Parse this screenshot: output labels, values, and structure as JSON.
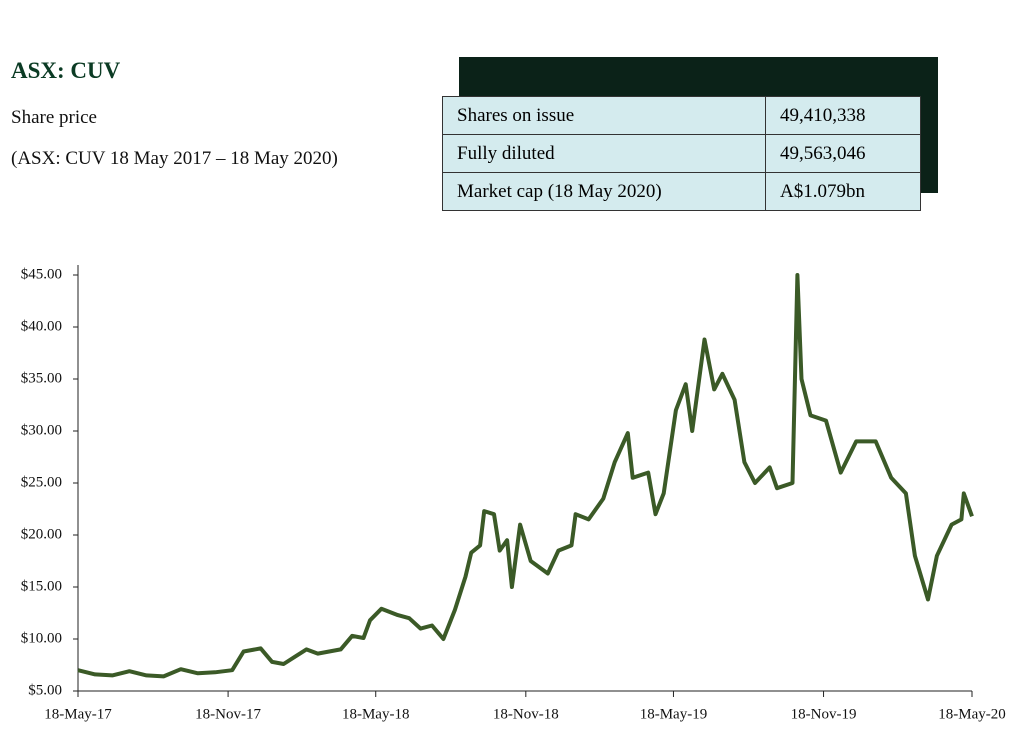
{
  "header": {
    "title": "ASX: CUV",
    "subtitle": "Share price",
    "note": "(ASX: CUV 18 May 2017 – 18 May 2020)"
  },
  "table": {
    "rows": [
      [
        "Shares on issue",
        "49,410,338"
      ],
      [
        "Fully diluted",
        "49,563,046"
      ],
      [
        "Market cap (18 May 2020)",
        "A$1.079bn"
      ]
    ]
  },
  "chart_data": {
    "type": "line",
    "color": "#3b5a27",
    "x": [
      "2017-05-18",
      "2017-06-08",
      "2017-06-29",
      "2017-07-20",
      "2017-08-10",
      "2017-08-31",
      "2017-09-21",
      "2017-10-12",
      "2017-11-02",
      "2017-11-23",
      "2017-12-07",
      "2017-12-28",
      "2018-01-11",
      "2018-01-25",
      "2018-02-08",
      "2018-02-22",
      "2018-03-08",
      "2018-03-22",
      "2018-04-05",
      "2018-04-19",
      "2018-05-03",
      "2018-05-11",
      "2018-05-25",
      "2018-06-14",
      "2018-06-28",
      "2018-07-12",
      "2018-07-26",
      "2018-08-09",
      "2018-08-23",
      "2018-09-05",
      "2018-09-12",
      "2018-09-23",
      "2018-09-28",
      "2018-10-10",
      "2018-10-17",
      "2018-10-26",
      "2018-11-01",
      "2018-11-11",
      "2018-11-24",
      "2018-12-15",
      "2018-12-28",
      "2019-01-13",
      "2019-01-18",
      "2019-02-03",
      "2019-02-21",
      "2019-03-07",
      "2019-03-23",
      "2019-03-29",
      "2019-04-17",
      "2019-04-26",
      "2019-05-06",
      "2019-05-21",
      "2019-06-02",
      "2019-06-10",
      "2019-06-25",
      "2019-07-07",
      "2019-07-17",
      "2019-08-01",
      "2019-08-13",
      "2019-08-26",
      "2019-09-13",
      "2019-09-22",
      "2019-10-11",
      "2019-10-17",
      "2019-10-22",
      "2019-11-02",
      "2019-11-21",
      "2019-12-09",
      "2019-12-28",
      "2020-01-21",
      "2020-02-09",
      "2020-02-27",
      "2020-03-09",
      "2020-03-25",
      "2020-04-05",
      "2020-04-23",
      "2020-05-05",
      "2020-05-08",
      "2020-05-18"
    ],
    "values": [
      7.0,
      6.6,
      6.5,
      6.9,
      6.5,
      6.4,
      7.1,
      6.7,
      6.8,
      7.0,
      8.8,
      9.1,
      7.8,
      7.6,
      8.3,
      9.0,
      8.6,
      8.8,
      9.0,
      10.3,
      10.1,
      11.8,
      12.9,
      12.3,
      12.0,
      11.0,
      11.3,
      10.0,
      12.8,
      16.0,
      18.3,
      19.0,
      22.3,
      22.0,
      18.5,
      19.5,
      15.0,
      21.0,
      17.5,
      16.3,
      18.5,
      19.0,
      22.0,
      21.5,
      23.5,
      27.0,
      29.8,
      25.5,
      26.0,
      22.0,
      24.0,
      32.0,
      34.5,
      30.0,
      38.8,
      34.0,
      35.5,
      33.0,
      27.0,
      25.0,
      26.5,
      24.5,
      25.0,
      45.0,
      35.0,
      31.5,
      31.0,
      26.0,
      29.0,
      29.0,
      25.5,
      24.0,
      18.0,
      13.8,
      18.0,
      21.0,
      21.5,
      24.0,
      21.8
    ],
    "xlim": [
      "2017-05-18",
      "2020-05-18"
    ],
    "xticks": [
      {
        "value": "2017-05-18",
        "label": "18-May-17"
      },
      {
        "value": "2017-11-18",
        "label": "18-Nov-17"
      },
      {
        "value": "2018-05-18",
        "label": "18-May-18"
      },
      {
        "value": "2018-11-18",
        "label": "18-Nov-18"
      },
      {
        "value": "2019-05-18",
        "label": "18-May-19"
      },
      {
        "value": "2019-11-18",
        "label": "18-Nov-19"
      },
      {
        "value": "2020-05-18",
        "label": "18-May-20"
      }
    ],
    "ylim": [
      5,
      45
    ],
    "yticks": [
      {
        "value": 5,
        "label": "$5.00"
      },
      {
        "value": 10,
        "label": "$10.00"
      },
      {
        "value": 15,
        "label": "$15.00"
      },
      {
        "value": 20,
        "label": "$20.00"
      },
      {
        "value": 25,
        "label": "$25.00"
      },
      {
        "value": 30,
        "label": "$30.00"
      },
      {
        "value": 35,
        "label": "$35.00"
      },
      {
        "value": 40,
        "label": "$40.00"
      },
      {
        "value": 45,
        "label": "$45.00"
      }
    ]
  }
}
